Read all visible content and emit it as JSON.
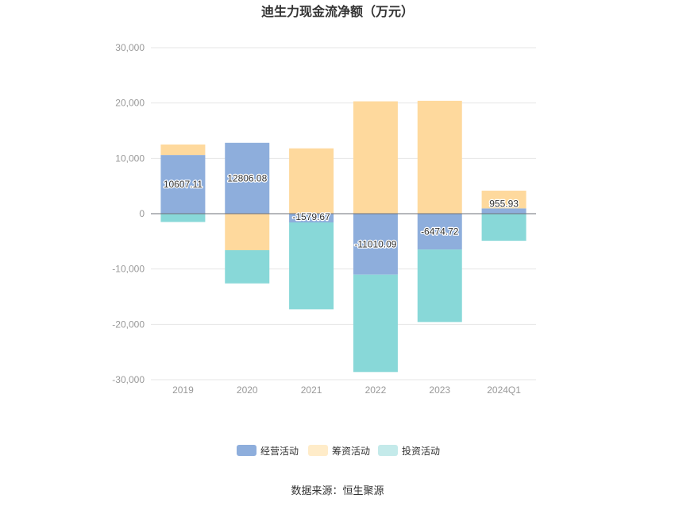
{
  "chart_data": {
    "type": "bar",
    "stacked": true,
    "title": "迪生力现金流净额（万元）",
    "categories": [
      "2019",
      "2020",
      "2021",
      "2022",
      "2023",
      "2024Q1"
    ],
    "series": [
      {
        "name": "经营活动",
        "color": "#8eaedc",
        "values": [
          10607.11,
          12806.08,
          -1579.67,
          -11010.09,
          -6474.72,
          955.93
        ]
      },
      {
        "name": "筹资活动",
        "color": "#fed99d",
        "values": [
          1900,
          -6600,
          11800,
          20300,
          20400,
          3200
        ]
      },
      {
        "name": "投资活动",
        "color": "#88d8d8",
        "values": [
          -1500,
          -6000,
          -15700,
          -17600,
          -13100,
          -4900
        ]
      }
    ],
    "data_labels": [
      "10607.11",
      "12806.08",
      "-1579.67",
      "-11010.09",
      "-6474.72",
      "955.93"
    ],
    "ylim": [
      -30000,
      30000
    ],
    "yticks": [
      30000,
      20000,
      10000,
      0,
      -10000,
      -20000,
      -30000
    ],
    "ytick_labels": [
      "30,000",
      "20,000",
      "10,000",
      "0",
      "-10,000",
      "-20,000",
      "-30,000"
    ],
    "grid": true,
    "legend_position": "bottom",
    "legend_colors": [
      "#8eaedc",
      "#ffecc9",
      "#c4eaea"
    ]
  },
  "source": "数据来源：恒生聚源"
}
